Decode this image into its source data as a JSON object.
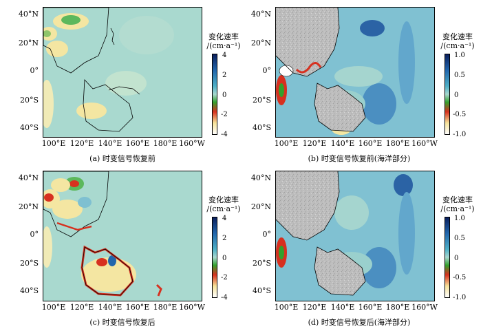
{
  "legend_title_line1": "变化速率",
  "legend_title_line2": "/(cm·a⁻¹)",
  "x_ticks": [
    "100°E",
    "120°E",
    "140°E",
    "160°E",
    "180°E",
    "160°W"
  ],
  "y_ticks": [
    "40°N",
    "20°N",
    "0°",
    "20°S",
    "40°S"
  ],
  "colors": {
    "land_gray": "#b9b9b9",
    "base_teal": "#a8d8cf",
    "ocean_blue": "#62b3cc",
    "deep_blue": "#1f5fa3",
    "yellow": "#f4e6a2",
    "green": "#33a02c",
    "red": "#d7301f"
  },
  "panels": [
    {
      "id": "a",
      "caption": "(a) 时变信号恢复前",
      "colorbar_ticks": [
        "4",
        "2",
        "0",
        "-2",
        "-4"
      ],
      "colorbar_range": [
        -4,
        4
      ]
    },
    {
      "id": "b",
      "caption": "(b) 时变信号恢复前(海洋部分)",
      "colorbar_ticks": [
        "1.0",
        "0.5",
        "0",
        "-0.5",
        "-1.0"
      ],
      "colorbar_range": [
        -1,
        1
      ]
    },
    {
      "id": "c",
      "caption": "(c) 时变信号恢复后",
      "colorbar_ticks": [
        "4",
        "2",
        "0",
        "-2",
        "-4"
      ],
      "colorbar_range": [
        -4,
        4
      ]
    },
    {
      "id": "d",
      "caption": "(d) 时变信号恢复后(海洋部分)",
      "colorbar_ticks": [
        "1.0",
        "0.5",
        "0",
        "-0.5",
        "-1.0"
      ],
      "colorbar_range": [
        -1,
        1
      ]
    }
  ]
}
